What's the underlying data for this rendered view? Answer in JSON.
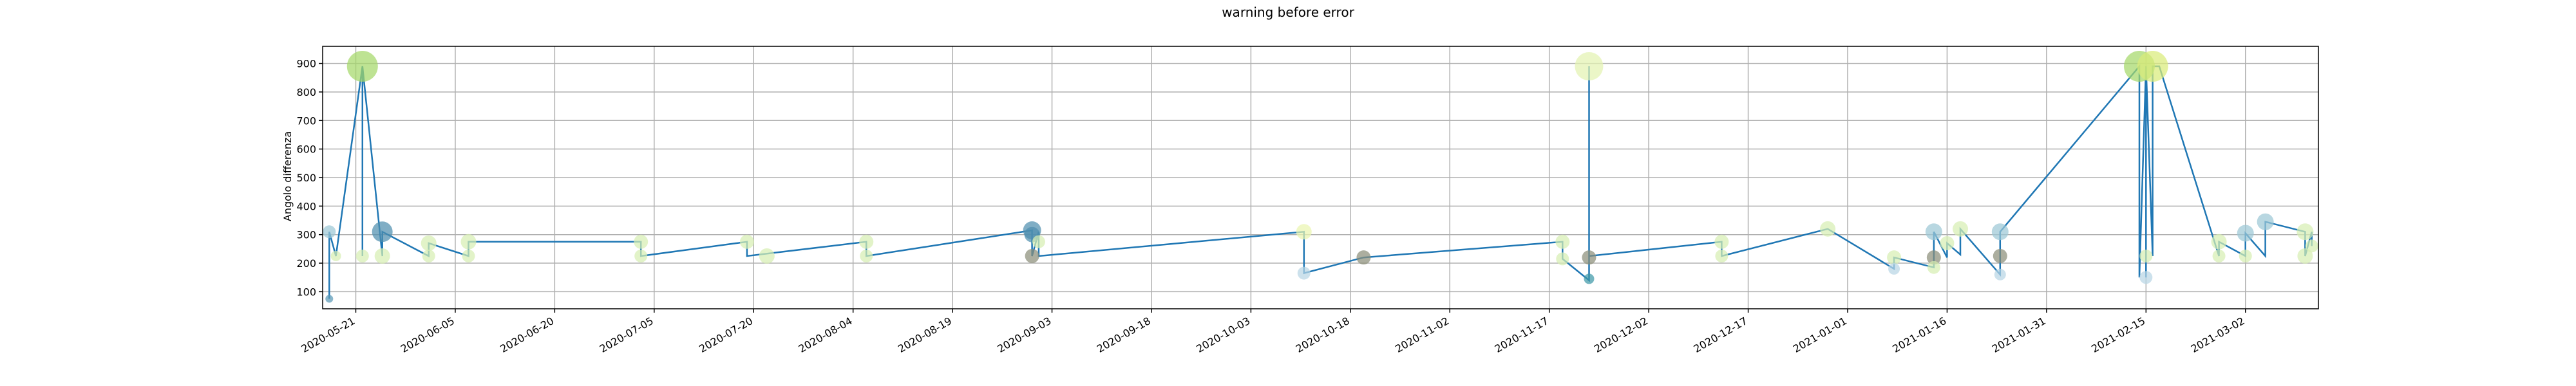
{
  "chart_data": {
    "type": "line",
    "title": "warning before error",
    "xlabel": "",
    "ylabel": "Angolo differenza",
    "grid": true,
    "xlim": [
      "2020-05-16",
      "2021-03-13"
    ],
    "ylim": [
      40,
      960
    ],
    "yticks": [
      100,
      200,
      300,
      400,
      500,
      600,
      700,
      800,
      900
    ],
    "xticks": [
      "2020-05-21",
      "2020-06-05",
      "2020-06-20",
      "2020-07-05",
      "2020-07-20",
      "2020-08-04",
      "2020-08-19",
      "2020-09-03",
      "2020-09-18",
      "2020-10-03",
      "2020-10-18",
      "2020-11-02",
      "2020-11-17",
      "2020-12-02",
      "2020-12-17",
      "2021-01-01",
      "2021-01-16",
      "2021-01-31",
      "2021-02-15",
      "2021-03-02"
    ],
    "line_color": "#1f77b4",
    "series": [
      {
        "x": [
          "2020-05-17",
          "2020-05-17",
          "2020-05-18",
          "2020-05-22",
          "2020-05-22",
          "2020-05-22",
          "2020-05-25",
          "2020-05-25",
          "2020-06-01",
          "2020-06-01",
          "2020-06-07",
          "2020-06-07",
          "2020-07-03",
          "2020-07-03",
          "2020-07-19",
          "2020-07-19",
          "2020-08-06",
          "2020-08-06",
          "2020-08-31",
          "2020-08-31",
          "2020-09-01",
          "2020-09-01",
          "2020-10-11",
          "2020-10-11",
          "2020-10-20",
          "2020-11-19",
          "2020-11-19",
          "2020-11-23",
          "2020-11-23",
          "2020-11-23",
          "2020-11-23",
          "2020-11-23",
          "2020-12-13",
          "2020-12-13",
          "2020-12-29",
          "2021-01-08",
          "2021-01-08",
          "2021-01-14",
          "2021-01-14",
          "2021-01-16",
          "2021-01-16",
          "2021-01-18",
          "2021-01-18",
          "2021-01-24",
          "2021-01-24",
          "2021-01-24",
          "2021-02-14",
          "2021-02-14",
          "2021-02-14",
          "2021-02-14",
          "2021-02-15",
          "2021-02-15",
          "2021-02-15",
          "2021-02-16",
          "2021-02-16",
          "2021-02-17",
          "2021-02-26",
          "2021-02-26",
          "2021-03-02",
          "2021-03-02",
          "2021-03-05",
          "2021-03-05",
          "2021-03-11",
          "2021-03-11",
          "2021-03-12",
          "2021-03-12"
        ],
        "y": [
          75,
          310,
          225,
          890,
          225,
          890,
          225,
          310,
          225,
          270,
          225,
          275,
          275,
          225,
          275,
          225,
          275,
          225,
          315,
          225,
          310,
          225,
          310,
          165,
          220,
          275,
          215,
          140,
          150,
          890,
          220,
          225,
          275,
          225,
          320,
          180,
          220,
          185,
          310,
          220,
          270,
          230,
          320,
          160,
          225,
          310,
          890,
          225,
          890,
          150,
          890,
          150,
          890,
          225,
          890,
          890,
          225,
          275,
          225,
          305,
          225,
          345,
          310,
          225,
          310,
          260
        ]
      }
    ],
    "bubbles": [
      {
        "x": "2020-05-17",
        "y": 75,
        "size": 6,
        "color": "#5b9ab7"
      },
      {
        "x": "2020-05-17",
        "y": 310,
        "size": 10,
        "color": "#9cc8d6"
      },
      {
        "x": "2020-05-18",
        "y": 225,
        "size": 8,
        "color": "#d7efb3"
      },
      {
        "x": "2020-05-22",
        "y": 225,
        "size": 10,
        "color": "#d7efb3"
      },
      {
        "x": "2020-05-22",
        "y": 890,
        "size": 24,
        "color": "#a5d86a"
      },
      {
        "x": "2020-05-25",
        "y": 310,
        "size": 16,
        "color": "#4f8faf"
      },
      {
        "x": "2020-05-25",
        "y": 225,
        "size": 12,
        "color": "#d7efb3"
      },
      {
        "x": "2020-06-01",
        "y": 225,
        "size": 10,
        "color": "#d7efb3"
      },
      {
        "x": "2020-06-01",
        "y": 270,
        "size": 12,
        "color": "#d7efb3"
      },
      {
        "x": "2020-06-07",
        "y": 225,
        "size": 10,
        "color": "#d7efb3"
      },
      {
        "x": "2020-06-07",
        "y": 275,
        "size": 12,
        "color": "#d7efb3"
      },
      {
        "x": "2020-07-03",
        "y": 275,
        "size": 11,
        "color": "#d7efb3"
      },
      {
        "x": "2020-07-03",
        "y": 225,
        "size": 10,
        "color": "#d7efb3"
      },
      {
        "x": "2020-07-19",
        "y": 275,
        "size": 11,
        "color": "#d7efb3"
      },
      {
        "x": "2020-07-22",
        "y": 225,
        "size": 12,
        "color": "#d7efb3"
      },
      {
        "x": "2020-08-06",
        "y": 275,
        "size": 11,
        "color": "#d7efb3"
      },
      {
        "x": "2020-08-06",
        "y": 225,
        "size": 10,
        "color": "#d7efb3"
      },
      {
        "x": "2020-08-31",
        "y": 315,
        "size": 14,
        "color": "#4f8faf"
      },
      {
        "x": "2020-08-31",
        "y": 300,
        "size": 12,
        "color": "#4f8faf"
      },
      {
        "x": "2020-09-01",
        "y": 275,
        "size": 10,
        "color": "#d7efb3"
      },
      {
        "x": "2020-08-31",
        "y": 225,
        "size": 11,
        "color": "#8c8f7a"
      },
      {
        "x": "2020-10-11",
        "y": 310,
        "size": 12,
        "color": "#eaf5b0"
      },
      {
        "x": "2020-10-11",
        "y": 165,
        "size": 10,
        "color": "#b8d6e4"
      },
      {
        "x": "2020-10-20",
        "y": 220,
        "size": 11,
        "color": "#8c8f7a"
      },
      {
        "x": "2020-11-19",
        "y": 275,
        "size": 11,
        "color": "#d7efb3"
      },
      {
        "x": "2020-11-19",
        "y": 215,
        "size": 10,
        "color": "#d7efb3"
      },
      {
        "x": "2020-11-23",
        "y": 890,
        "size": 22,
        "color": "#e3f2b2"
      },
      {
        "x": "2020-11-23",
        "y": 220,
        "size": 11,
        "color": "#8c8f7a"
      },
      {
        "x": "2020-11-23",
        "y": 145,
        "size": 8,
        "color": "#3f98a7"
      },
      {
        "x": "2020-12-13",
        "y": 275,
        "size": 11,
        "color": "#d7efb3"
      },
      {
        "x": "2020-12-13",
        "y": 225,
        "size": 10,
        "color": "#d7efb3"
      },
      {
        "x": "2020-12-29",
        "y": 320,
        "size": 12,
        "color": "#d7efb3"
      },
      {
        "x": "2021-01-08",
        "y": 220,
        "size": 11,
        "color": "#d7efb3"
      },
      {
        "x": "2021-01-08",
        "y": 180,
        "size": 9,
        "color": "#b8d6e4"
      },
      {
        "x": "2021-01-14",
        "y": 310,
        "size": 13,
        "color": "#9cc8d6"
      },
      {
        "x": "2021-01-14",
        "y": 220,
        "size": 11,
        "color": "#8c8f7a"
      },
      {
        "x": "2021-01-14",
        "y": 185,
        "size": 10,
        "color": "#d7efb3"
      },
      {
        "x": "2021-01-16",
        "y": 270,
        "size": 11,
        "color": "#d7efb3"
      },
      {
        "x": "2021-01-18",
        "y": 320,
        "size": 12,
        "color": "#d7efb3"
      },
      {
        "x": "2021-01-24",
        "y": 310,
        "size": 13,
        "color": "#9cc8d6"
      },
      {
        "x": "2021-01-24",
        "y": 225,
        "size": 11,
        "color": "#8c8f7a"
      },
      {
        "x": "2021-01-24",
        "y": 160,
        "size": 9,
        "color": "#b8d6e4"
      },
      {
        "x": "2021-02-14",
        "y": 890,
        "size": 24,
        "color": "#a5d86a"
      },
      {
        "x": "2021-02-16",
        "y": 890,
        "size": 24,
        "color": "#d9ec7a"
      },
      {
        "x": "2021-02-15",
        "y": 150,
        "size": 10,
        "color": "#b8d6e4"
      },
      {
        "x": "2021-02-15",
        "y": 225,
        "size": 10,
        "color": "#d7efb3"
      },
      {
        "x": "2021-02-26",
        "y": 275,
        "size": 12,
        "color": "#d7efb3"
      },
      {
        "x": "2021-02-26",
        "y": 225,
        "size": 10,
        "color": "#d7efb3"
      },
      {
        "x": "2021-03-02",
        "y": 305,
        "size": 13,
        "color": "#9cc8d6"
      },
      {
        "x": "2021-03-02",
        "y": 225,
        "size": 10,
        "color": "#d7efb3"
      },
      {
        "x": "2021-03-05",
        "y": 345,
        "size": 13,
        "color": "#9cc8d6"
      },
      {
        "x": "2021-03-11",
        "y": 310,
        "size": 13,
        "color": "#d7efb3"
      },
      {
        "x": "2021-03-11",
        "y": 225,
        "size": 12,
        "color": "#d7efb3"
      },
      {
        "x": "2021-03-12",
        "y": 260,
        "size": 10,
        "color": "#d7efb3"
      }
    ]
  }
}
